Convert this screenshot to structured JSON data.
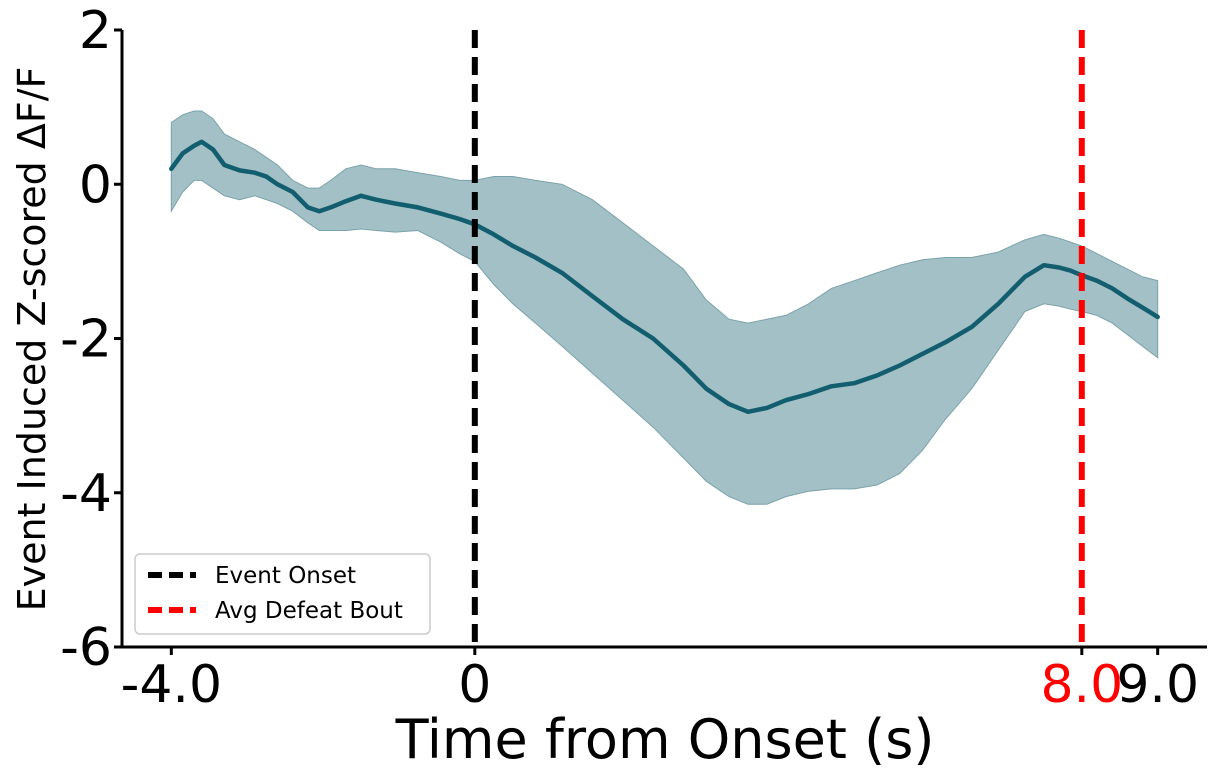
{
  "chart_data": {
    "type": "line",
    "title": "",
    "xlabel": "Time from Onset (s)",
    "ylabel": "Event Induced Z-scored ΔF/F",
    "xlim": [
      -4.65,
      9.65
    ],
    "ylim": [
      -6,
      2
    ],
    "x_ticks": [
      {
        "value": -4.0,
        "label": "-4.0",
        "color": "#000000"
      },
      {
        "value": 0,
        "label": "0",
        "color": "#000000"
      },
      {
        "value": 8.0,
        "label": "8.0",
        "color": "#ff0000"
      },
      {
        "value": 9.0,
        "label": "9.0",
        "color": "#000000"
      }
    ],
    "y_ticks": [
      {
        "value": 2,
        "label": "2"
      },
      {
        "value": 0,
        "label": "0"
      },
      {
        "value": -2,
        "label": "-2"
      },
      {
        "value": -4,
        "label": "-4"
      },
      {
        "value": -6,
        "label": "-6"
      }
    ],
    "grid": false,
    "series": [
      {
        "color": "#125e6f",
        "band_color": "#a3c0c6",
        "x": [
          -4.0,
          -3.85,
          -3.7,
          -3.6,
          -3.45,
          -3.3,
          -3.1,
          -2.9,
          -2.75,
          -2.6,
          -2.4,
          -2.2,
          -2.05,
          -1.9,
          -1.7,
          -1.5,
          -1.3,
          -1.05,
          -0.75,
          -0.45,
          -0.2,
          0.0,
          0.25,
          0.5,
          0.8,
          1.15,
          1.55,
          1.95,
          2.35,
          2.75,
          3.05,
          3.35,
          3.6,
          3.85,
          4.1,
          4.4,
          4.7,
          5.0,
          5.3,
          5.6,
          5.9,
          6.2,
          6.55,
          6.9,
          7.25,
          7.5,
          7.7,
          7.85,
          8.0,
          8.2,
          8.4,
          8.6,
          8.8,
          9.0
        ],
        "mean": [
          0.2,
          0.4,
          0.5,
          0.55,
          0.45,
          0.25,
          0.18,
          0.15,
          0.1,
          0.0,
          -0.1,
          -0.3,
          -0.35,
          -0.3,
          -0.22,
          -0.15,
          -0.2,
          -0.25,
          -0.3,
          -0.38,
          -0.45,
          -0.52,
          -0.65,
          -0.8,
          -0.95,
          -1.15,
          -1.45,
          -1.75,
          -2.0,
          -2.35,
          -2.65,
          -2.85,
          -2.95,
          -2.9,
          -2.8,
          -2.72,
          -2.62,
          -2.58,
          -2.48,
          -2.35,
          -2.2,
          -2.05,
          -1.85,
          -1.55,
          -1.2,
          -1.05,
          -1.08,
          -1.12,
          -1.18,
          -1.25,
          -1.35,
          -1.48,
          -1.6,
          -1.72
        ],
        "upper": [
          0.8,
          0.9,
          0.95,
          0.95,
          0.85,
          0.65,
          0.55,
          0.45,
          0.35,
          0.25,
          0.05,
          -0.05,
          -0.05,
          0.05,
          0.2,
          0.25,
          0.2,
          0.2,
          0.15,
          0.1,
          0.05,
          0.05,
          0.1,
          0.1,
          0.05,
          0.0,
          -0.2,
          -0.5,
          -0.8,
          -1.1,
          -1.5,
          -1.75,
          -1.8,
          -1.75,
          -1.7,
          -1.55,
          -1.35,
          -1.25,
          -1.15,
          -1.05,
          -0.98,
          -0.95,
          -0.95,
          -0.88,
          -0.72,
          -0.65,
          -0.7,
          -0.75,
          -0.8,
          -0.9,
          -1.0,
          -1.1,
          -1.2,
          -1.25
        ],
        "lower": [
          -0.35,
          -0.1,
          0.05,
          0.05,
          -0.05,
          -0.15,
          -0.2,
          -0.15,
          -0.2,
          -0.25,
          -0.35,
          -0.5,
          -0.6,
          -0.6,
          -0.6,
          -0.58,
          -0.6,
          -0.62,
          -0.6,
          -0.75,
          -0.9,
          -1.0,
          -1.3,
          -1.55,
          -1.8,
          -2.1,
          -2.45,
          -2.8,
          -3.15,
          -3.55,
          -3.85,
          -4.05,
          -4.15,
          -4.15,
          -4.05,
          -3.98,
          -3.95,
          -3.95,
          -3.9,
          -3.75,
          -3.45,
          -3.05,
          -2.65,
          -2.15,
          -1.65,
          -1.55,
          -1.58,
          -1.62,
          -1.65,
          -1.7,
          -1.8,
          -1.95,
          -2.1,
          -2.25
        ]
      }
    ],
    "vlines": [
      {
        "x": 0,
        "color": "#000000",
        "label": "Event Onset"
      },
      {
        "x": 8.0,
        "color": "#ff0000",
        "label": "Avg Defeat Bout"
      }
    ],
    "legend": {
      "position": "lower-left",
      "entries": [
        {
          "label": "Event Onset",
          "color": "#000000"
        },
        {
          "label": "Avg Defeat Bout",
          "color": "#ff0000"
        }
      ]
    }
  }
}
